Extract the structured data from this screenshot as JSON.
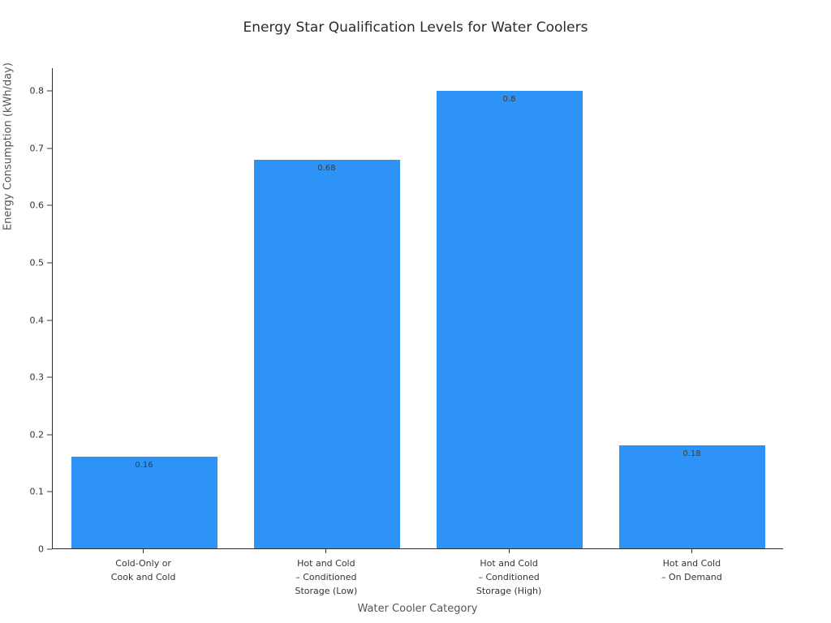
{
  "chart_data": {
    "type": "bar",
    "title": "Energy Star Qualification Levels for Water Coolers",
    "xlabel": "Water Cooler Category",
    "ylabel": "Energy Consumption (kWh/day)",
    "categories": [
      "Cold-Only or\nCook and Cold",
      "Hot and Cold\n– Conditioned\nStorage (Low)",
      "Hot and Cold\n– Conditioned\nStorage (High)",
      "Hot and Cold\n– On Demand"
    ],
    "values": [
      0.16,
      0.68,
      0.8,
      0.18
    ],
    "value_labels": [
      "0.16",
      "0.68",
      "0.8",
      "0.18"
    ],
    "ylim": [
      0,
      0.84
    ],
    "yticks": [
      0,
      0.1,
      0.2,
      0.3,
      0.4,
      0.5,
      0.6,
      0.7,
      0.8
    ],
    "ytick_labels": [
      "0",
      "0.1",
      "0.2",
      "0.3",
      "0.4",
      "0.5",
      "0.6",
      "0.7",
      "0.8"
    ],
    "bar_color": "#2e93f7",
    "grid": false,
    "legend": "none"
  }
}
